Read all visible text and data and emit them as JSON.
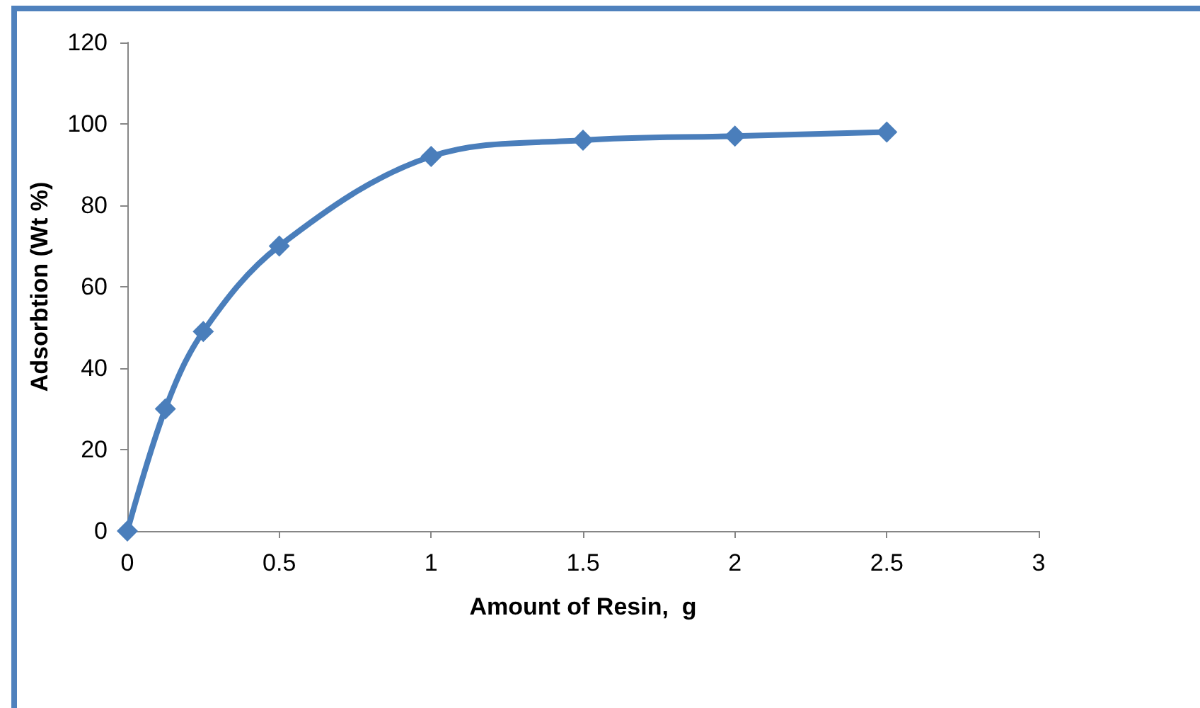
{
  "chart_data": {
    "type": "line",
    "xlabel": "Amount of Resin,  g",
    "ylabel": "Adsorbtion (Wt %)",
    "x": [
      0,
      0.125,
      0.25,
      0.5,
      1,
      1.5,
      2,
      2.5
    ],
    "series": [
      {
        "color": "#4a7ebb",
        "values": [
          0,
          30,
          49,
          70,
          92,
          96,
          97,
          98
        ]
      }
    ],
    "xlim": [
      0,
      3
    ],
    "xticks": [
      0,
      0.5,
      1,
      1.5,
      2,
      2.5,
      3
    ],
    "ylim": [
      0,
      120
    ],
    "yticks": [
      0,
      20,
      40,
      60,
      80,
      100,
      120
    ],
    "grid": false,
    "marker": "diamond",
    "line_style": "solid"
  }
}
